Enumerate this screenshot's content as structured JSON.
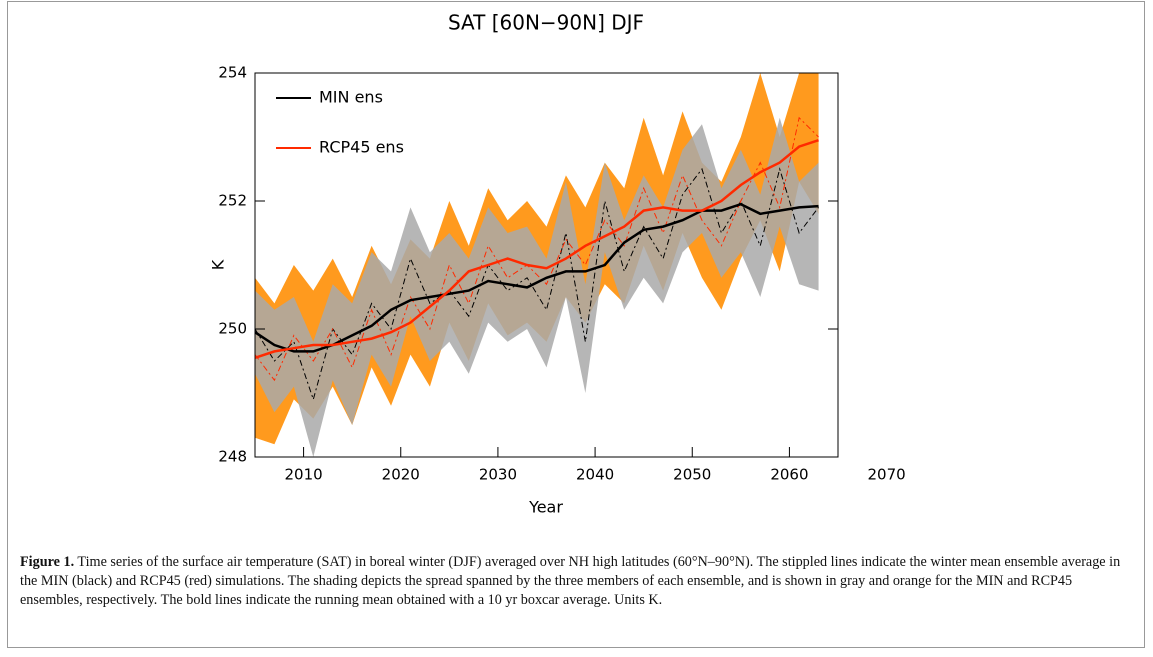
{
  "chart_data": {
    "type": "line",
    "title": "SAT [60N−90N] DJF",
    "x_label": "Year",
    "y_label": "K",
    "x": [
      2005,
      2007,
      2009,
      2011,
      2013,
      2015,
      2017,
      2019,
      2021,
      2023,
      2025,
      2027,
      2029,
      2031,
      2033,
      2035,
      2037,
      2039,
      2041,
      2043,
      2045,
      2047,
      2049,
      2051,
      2053,
      2055,
      2057,
      2059,
      2061,
      2063
    ],
    "xlim": [
      2005,
      2065
    ],
    "xticks": [
      2010,
      2020,
      2030,
      2040,
      2050,
      2060,
      2070
    ],
    "ylim": [
      248,
      254
    ],
    "yticks": [
      248,
      250,
      252,
      254
    ],
    "series": [
      {
        "name": "MIN ens",
        "color": "#000000",
        "band_color": "#a9a9a9",
        "values": [
          249.95,
          249.75,
          249.65,
          249.65,
          249.75,
          249.9,
          250.05,
          250.3,
          250.45,
          250.5,
          250.55,
          250.6,
          250.75,
          250.7,
          250.65,
          250.8,
          250.9,
          250.9,
          251.0,
          251.35,
          251.55,
          251.6,
          251.7,
          251.85,
          251.85,
          251.95,
          251.8,
          251.85,
          251.9,
          251.92
        ],
        "annual": [
          250.0,
          249.5,
          249.8,
          248.9,
          250.0,
          249.6,
          250.4,
          250.0,
          251.1,
          250.4,
          250.6,
          250.2,
          251.0,
          250.6,
          250.8,
          250.3,
          251.5,
          249.8,
          252.0,
          250.9,
          251.6,
          251.1,
          252.1,
          252.5,
          251.5,
          252.0,
          251.3,
          252.5,
          251.5,
          251.9
        ],
        "band_low": [
          249.3,
          248.7,
          249.1,
          248.0,
          249.2,
          248.5,
          249.6,
          249.1,
          250.2,
          249.5,
          249.8,
          249.3,
          250.1,
          249.8,
          250.0,
          249.4,
          250.5,
          249.0,
          251.2,
          250.3,
          250.8,
          250.4,
          251.2,
          251.5,
          250.8,
          251.2,
          250.5,
          251.6,
          250.7,
          250.6
        ],
        "band_high": [
          250.6,
          250.3,
          250.5,
          249.8,
          250.7,
          250.4,
          251.2,
          250.9,
          251.9,
          251.2,
          251.5,
          251.1,
          251.9,
          251.5,
          251.6,
          251.1,
          252.3,
          250.7,
          252.6,
          251.7,
          252.4,
          251.9,
          252.8,
          253.2,
          252.2,
          252.8,
          252.1,
          253.3,
          252.3,
          252.6
        ]
      },
      {
        "name": "RCP45 ens",
        "color": "#ff2a00",
        "band_color": "#ff9a1e",
        "values": [
          249.55,
          249.65,
          249.7,
          249.75,
          249.75,
          249.8,
          249.85,
          249.95,
          250.1,
          250.35,
          250.6,
          250.9,
          251.0,
          251.1,
          251.0,
          250.95,
          251.1,
          251.3,
          251.45,
          251.6,
          251.85,
          251.9,
          251.85,
          251.85,
          252.0,
          252.25,
          252.45,
          252.6,
          252.85,
          252.95
        ],
        "annual": [
          249.6,
          249.2,
          249.9,
          249.5,
          250.0,
          249.4,
          250.3,
          249.6,
          250.5,
          250.0,
          251.0,
          250.4,
          251.3,
          250.8,
          251.0,
          250.7,
          251.4,
          251.0,
          251.7,
          251.3,
          252.2,
          251.5,
          252.4,
          251.7,
          251.3,
          252.0,
          252.6,
          251.9,
          253.3,
          253.0
        ],
        "band_low": [
          248.3,
          248.2,
          248.9,
          248.6,
          249.1,
          248.5,
          249.4,
          248.8,
          249.6,
          249.1,
          250.1,
          249.5,
          250.4,
          249.9,
          250.1,
          249.8,
          250.5,
          250.1,
          250.7,
          250.4,
          251.3,
          250.6,
          251.5,
          250.8,
          250.3,
          251.1,
          251.7,
          250.9,
          252.3,
          251.8
        ],
        "band_high": [
          250.8,
          250.4,
          251.0,
          250.6,
          251.1,
          250.5,
          251.3,
          250.7,
          251.4,
          251.1,
          252.0,
          251.3,
          252.2,
          251.7,
          252.0,
          251.6,
          252.4,
          251.9,
          252.6,
          252.2,
          253.3,
          252.4,
          253.4,
          252.6,
          252.3,
          253.0,
          254.0,
          253.0,
          254.0,
          254.0
        ]
      }
    ]
  },
  "caption": {
    "label": "Figure 1.",
    "text": "Time series of the surface air temperature (SAT) in boreal winter (DJF) averaged over NH high latitudes (60°N–90°N). The stippled lines indicate the winter mean ensemble average in the MIN (black) and RCP45 (red) simulations. The shading depicts the spread spanned by the three members of each ensemble, and is shown in gray and orange for the MIN and RCP45 ensembles, respectively. The bold lines indicate the running mean obtained with a 10 yr boxcar average. Units K."
  }
}
